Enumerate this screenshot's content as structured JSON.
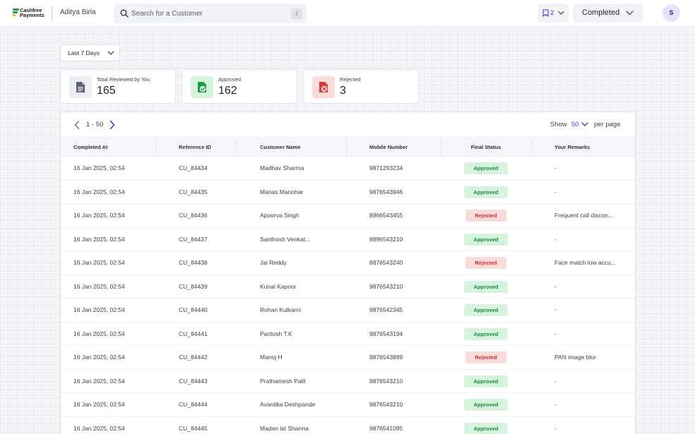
{
  "header": {
    "logo_line1": "Cashfree",
    "logo_line2": "Payments",
    "org_name": "Aditya Birla",
    "search": {
      "placeholder": "Search for a Customer",
      "shortcut": "/"
    },
    "bookmark_count": "2",
    "status_filter": "Completed",
    "avatar_initial": "S"
  },
  "filters": {
    "date_range": "Last 7 Days"
  },
  "stats": [
    {
      "label": "Total Reviewed by You",
      "value": "165",
      "icon": "document-icon",
      "color": "#5b6072"
    },
    {
      "label": "Approved",
      "value": "162",
      "icon": "approved-icon",
      "color": "#1a9a45"
    },
    {
      "label": "Rejected",
      "value": "3",
      "icon": "rejected-icon",
      "color": "#d13b3b"
    }
  ],
  "pagination": {
    "range": "1 - 50",
    "show_label": "Show",
    "per_page": "50",
    "per_page_label": "per page"
  },
  "table": {
    "columns": [
      "Completed At",
      "Reference ID",
      "Customer Name",
      "Mobile Number",
      "Final Status",
      "Your Remarks"
    ],
    "rows": [
      {
        "completed_at": "16 Jan 2025, 02:54",
        "ref": "CU_84434",
        "name": "Madhav Sharma",
        "mobile": "9871293234",
        "status": "Approved",
        "remarks": "-"
      },
      {
        "completed_at": "16 Jan 2025, 02:54",
        "ref": "CU_84435",
        "name": "Manas Manohar",
        "mobile": "9876543946",
        "status": "Approved",
        "remarks": "-"
      },
      {
        "completed_at": "16 Jan 2025, 02:54",
        "ref": "CU_84436",
        "name": "Apoorva Singh",
        "mobile": "8966543455",
        "status": "Rejected",
        "remarks": "Frequent call discon..."
      },
      {
        "completed_at": "16 Jan 2025, 02:54",
        "ref": "CU_84437",
        "name": "Santhosh Venkat...",
        "mobile": "8896543210",
        "status": "Approved",
        "remarks": "-"
      },
      {
        "completed_at": "16 Jan 2025, 02:54",
        "ref": "CU_84438",
        "name": "Jai Reddy",
        "mobile": "8876543240",
        "status": "Rejected",
        "remarks": "Face match low accu..."
      },
      {
        "completed_at": "16 Jan 2025, 02:54",
        "ref": "CU_84439",
        "name": "Kunal Kapoor",
        "mobile": "9876543210",
        "status": "Approved",
        "remarks": "-"
      },
      {
        "completed_at": "16 Jan 2025, 02:54",
        "ref": "CU_84440",
        "name": "Rohan Kulkarni",
        "mobile": "9876542345",
        "status": "Approved",
        "remarks": "-"
      },
      {
        "completed_at": "16 Jan 2025, 02:54",
        "ref": "CU_84441",
        "name": "Paritosh T.K",
        "mobile": "9876543194",
        "status": "Approved",
        "remarks": "-"
      },
      {
        "completed_at": "16 Jan 2025, 02:54",
        "ref": "CU_84442",
        "name": "Manoj H",
        "mobile": "9876543889",
        "status": "Rejected",
        "remarks": "PAN image blur"
      },
      {
        "completed_at": "16 Jan 2025, 02:54",
        "ref": "CU_84443",
        "name": "Prathamesh Patil",
        "mobile": "9876543210",
        "status": "Approved",
        "remarks": "-"
      },
      {
        "completed_at": "16 Jan 2025, 02:54",
        "ref": "CU_84444",
        "name": "Avantika Deshpande",
        "mobile": "9876543210",
        "status": "Approved",
        "remarks": "-"
      },
      {
        "completed_at": "16 Jan 2025, 02:54",
        "ref": "CU_84445",
        "name": "Madan lal Sharma",
        "mobile": "9876541095",
        "status": "Approved",
        "remarks": "-"
      }
    ]
  },
  "colors": {
    "accent": "#4b34d6",
    "approved_bg": "#d6f3de",
    "approved_text": "#1a8a3e",
    "rejected_bg": "#fbdada",
    "rejected_text": "#c53333"
  }
}
